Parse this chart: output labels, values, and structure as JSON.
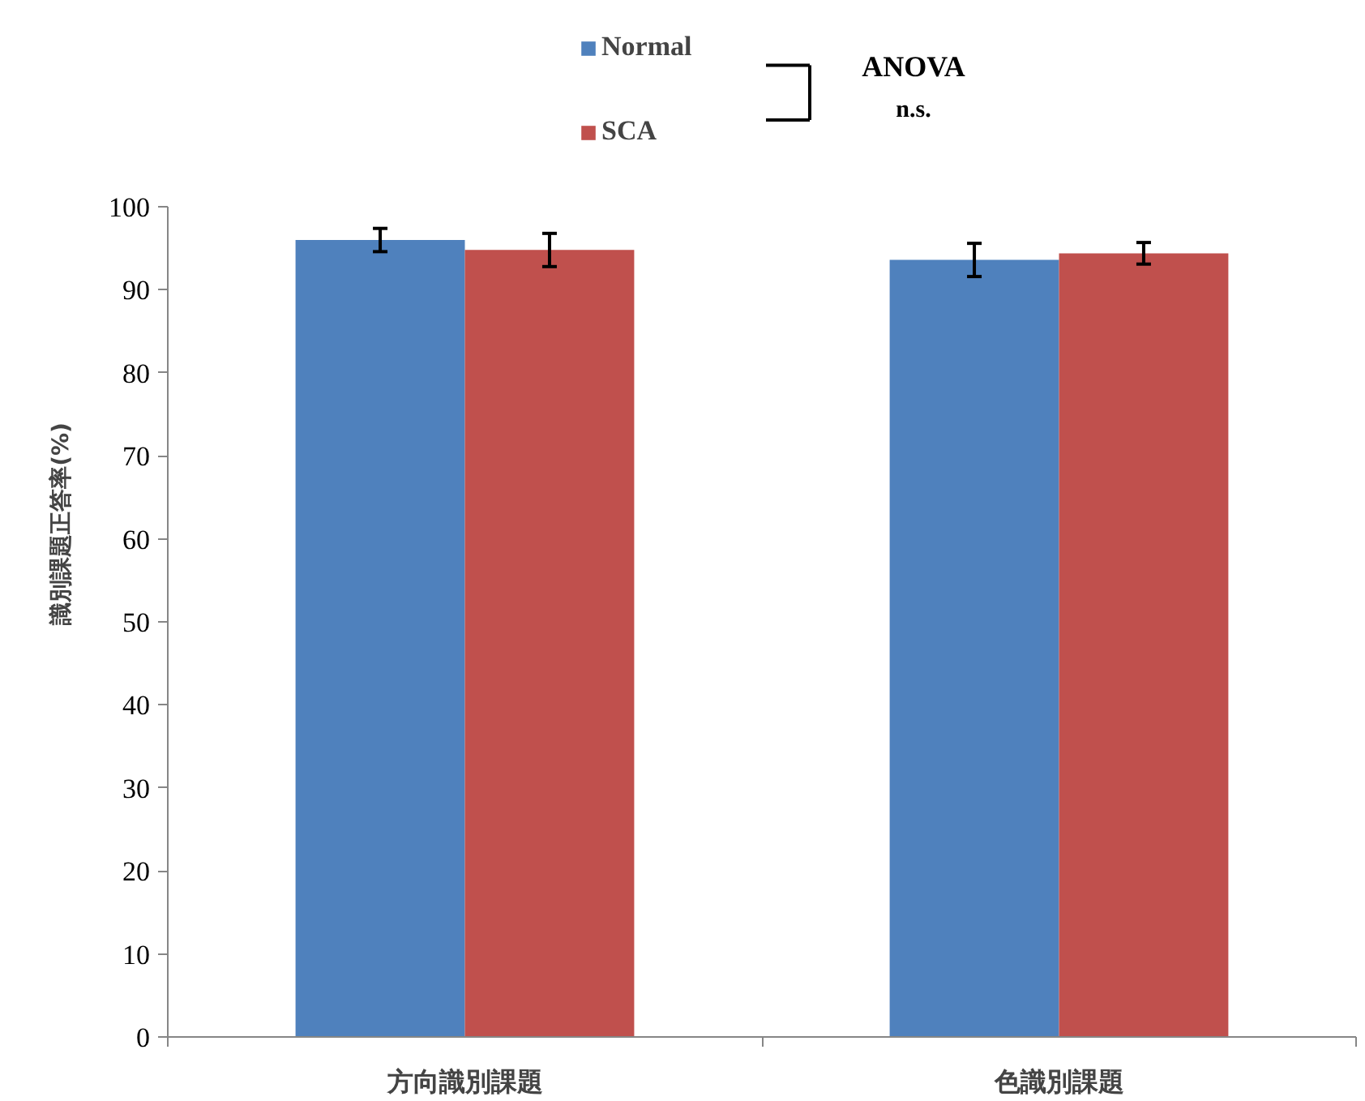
{
  "chart_data": {
    "type": "bar",
    "categories": [
      "方向識別課題",
      "色識別課題"
    ],
    "series": [
      {
        "name": "Normal",
        "color": "#4f81bd",
        "values": [
          96.0,
          93.6
        ],
        "errors": [
          1.4,
          2.0
        ]
      },
      {
        "name": "SCA",
        "color": "#c0504d",
        "values": [
          94.8,
          94.4
        ],
        "errors": [
          2.0,
          1.3
        ]
      }
    ],
    "ylabel": "識別課題正答率(%)",
    "ylim": [
      0,
      100
    ],
    "yticks": [
      0,
      10,
      20,
      30,
      40,
      50,
      60,
      70,
      80,
      90,
      100
    ],
    "grid": false,
    "legend": "top",
    "annotations": [
      "ANOVA",
      "n.s."
    ]
  }
}
